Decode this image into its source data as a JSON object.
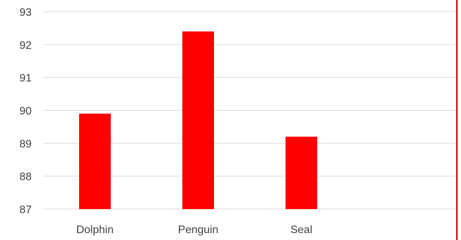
{
  "chart_data": {
    "type": "bar",
    "categories": [
      "Dolphin",
      "Penguin",
      "Seal"
    ],
    "values": [
      89.9,
      92.4,
      89.2
    ],
    "ylim": [
      87,
      93
    ],
    "yticks": [
      87,
      88,
      89,
      90,
      91,
      92,
      93
    ],
    "grid": true,
    "bar_color": "#ff0000",
    "border_color": "#cc0000",
    "title": "",
    "xlabel": "",
    "ylabel": ""
  }
}
